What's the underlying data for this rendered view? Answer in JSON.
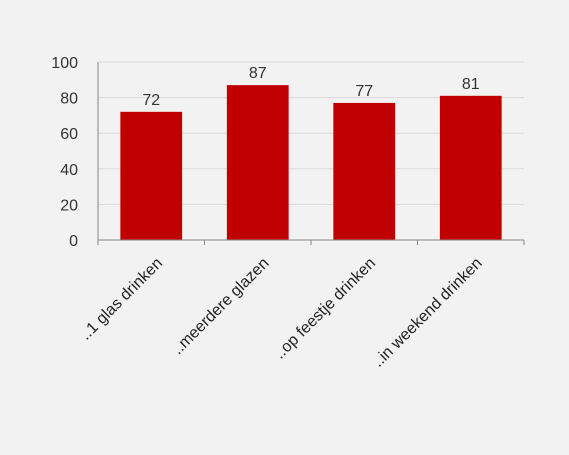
{
  "chart_data": {
    "type": "bar",
    "categories": [
      "..1 glas drinken",
      "..meerdere glazen",
      "..op feestje drinken",
      "..in weekend drinken"
    ],
    "values": [
      72,
      87,
      77,
      81
    ],
    "data_labels": [
      "72",
      "87",
      "77",
      "81"
    ],
    "ylim": [
      0,
      100
    ],
    "yticks": [
      "0",
      "20",
      "40",
      "60",
      "80",
      "100"
    ],
    "grid": true,
    "legend": "none",
    "bar_color": "#c00000",
    "grid_color": "#d9d9d9",
    "axis_color": "#868686"
  }
}
